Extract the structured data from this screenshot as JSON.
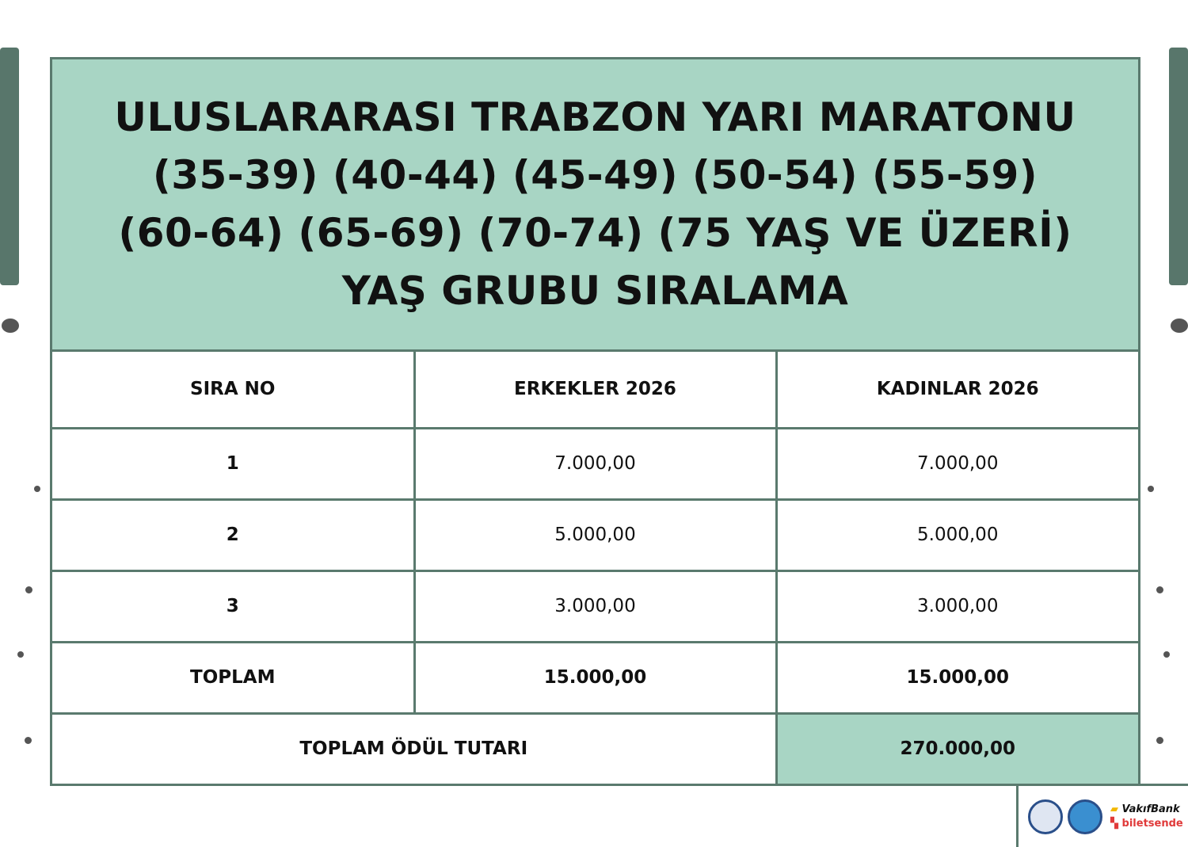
{
  "title_lines": [
    "ULUSLARARASI TRABZON YARI MARATONU",
    "(35-39) (40-44) (45-49) (50-54) (55-59)",
    "(60-64) (65-69) (70-74) (75 YAŞ VE ÜZERİ)",
    "YAŞ GRUBU SIRALAMA"
  ],
  "table": {
    "headers": [
      "SIRA NO",
      "ERKEKLER 2026",
      "KADINLAR 2026"
    ],
    "rows": [
      [
        "1",
        "7.000,00",
        "7.000,00"
      ],
      [
        "2",
        "5.000,00",
        "5.000,00"
      ],
      [
        "3",
        "3.000,00",
        "3.000,00"
      ]
    ],
    "total": [
      "TOPLAM",
      "15.000,00",
      "15.000,00"
    ],
    "grand_total_label": "TOPLAM ÖDÜL TUTARI",
    "grand_total_value": "270.000,00"
  },
  "sponsors": [
    "VakıfBank",
    "biletsende"
  ],
  "colors": {
    "accent": "#a8d5c4",
    "border": "#5a7a6e",
    "brush": "#58766b"
  }
}
